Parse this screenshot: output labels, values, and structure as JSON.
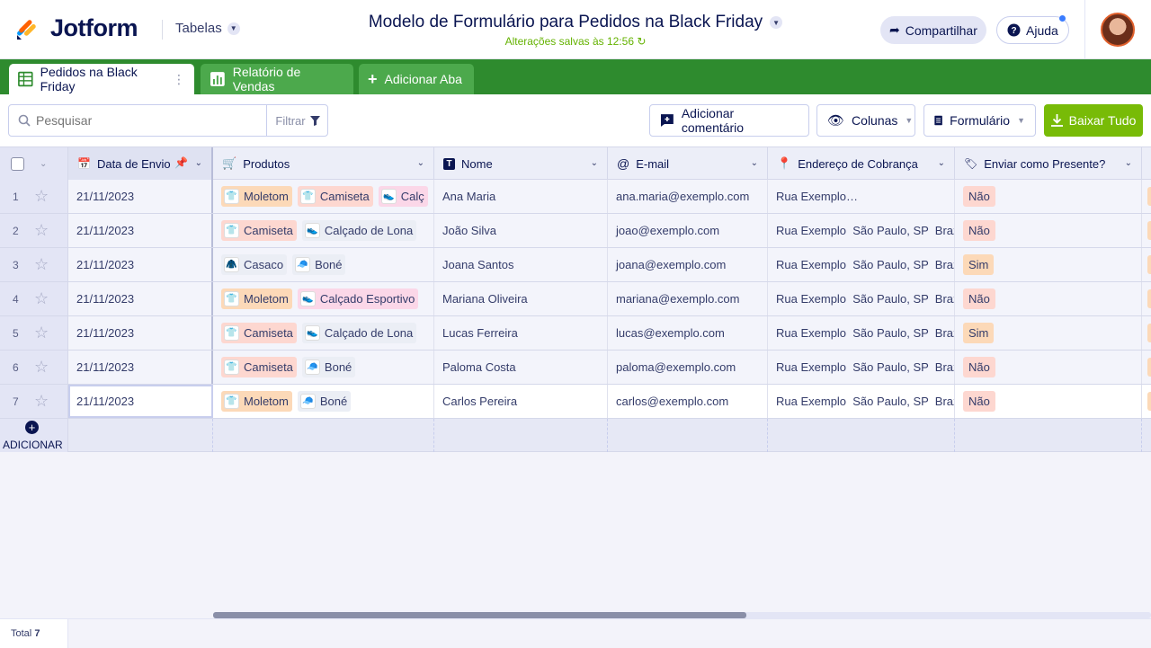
{
  "header": {
    "logo_text": "Jotform",
    "tables_label": "Tabelas",
    "form_title": "Modelo de Formulário para Pedidos na Black Friday",
    "saved_status": "Alterações salvas às 12:56",
    "share_label": "Compartilhar",
    "help_label": "Ajuda"
  },
  "tabs": [
    {
      "label": "Pedidos na Black Friday",
      "active": true
    },
    {
      "label": "Relatório de Vendas",
      "active": false
    },
    {
      "label": "Adicionar Aba",
      "active": false
    }
  ],
  "toolbar": {
    "search_placeholder": "Pesquisar",
    "filter_label": "Filtrar",
    "add_comment_label": "Adicionar comentário",
    "columns_label": "Colunas",
    "form_label": "Formulário",
    "download_label": "Baixar Tudo"
  },
  "columns": [
    {
      "label": "Data de Envio",
      "icon": "calendar-icon"
    },
    {
      "label": "Produtos",
      "icon": "cart-icon"
    },
    {
      "label": "Nome",
      "icon": "text-icon"
    },
    {
      "label": "E-mail",
      "icon": "at-icon"
    },
    {
      "label": "Endereço de Cobrança",
      "icon": "location-pin-icon"
    },
    {
      "label": "Enviar como Presente?",
      "icon": "tag-icon"
    }
  ],
  "rows": [
    {
      "num": "1",
      "date": "21/11/2023",
      "products": [
        "Moletom",
        "Camiseta",
        "Calç"
      ],
      "name": "Ana Maria",
      "email": "ana.maria@exemplo.com",
      "address": "Rua Exemplo…",
      "gift": "Não"
    },
    {
      "num": "2",
      "date": "21/11/2023",
      "products": [
        "Camiseta",
        "Calçado de Lona"
      ],
      "name": "João Silva",
      "email": "joao@exemplo.com",
      "address": "Rua Exemplo  São Paulo, SP  Brazil",
      "gift": "Não"
    },
    {
      "num": "3",
      "date": "21/11/2023",
      "products": [
        "Casaco",
        "Boné"
      ],
      "name": "Joana Santos",
      "email": "joana@exemplo.com",
      "address": "Rua Exemplo  São Paulo, SP  Brazil",
      "gift": "Sim"
    },
    {
      "num": "4",
      "date": "21/11/2023",
      "products": [
        "Moletom",
        "Calçado Esportivo"
      ],
      "name": "Mariana Oliveira",
      "email": "mariana@exemplo.com",
      "address": "Rua Exemplo  São Paulo, SP  Brazil",
      "gift": "Não"
    },
    {
      "num": "5",
      "date": "21/11/2023",
      "products": [
        "Camiseta",
        "Calçado de Lona"
      ],
      "name": "Lucas Ferreira",
      "email": "lucas@exemplo.com",
      "address": "Rua Exemplo  São Paulo, SP  Brazil",
      "gift": "Sim"
    },
    {
      "num": "6",
      "date": "21/11/2023",
      "products": [
        "Camiseta",
        "Boné"
      ],
      "name": "Paloma Costa",
      "email": "paloma@exemplo.com",
      "address": "Rua Exemplo  São Paulo, SP  Brazil",
      "gift": "Não"
    },
    {
      "num": "7",
      "date": "21/11/2023",
      "products": [
        "Moletom",
        "Boné"
      ],
      "name": "Carlos Pereira",
      "email": "carlos@exemplo.com",
      "address": "Rua Exemplo  São Paulo, SP  Brazil",
      "gift": "Não"
    }
  ],
  "add_row_label": "ADICIONAR",
  "footer": {
    "total_label": "Total",
    "total_count": "7"
  },
  "colors": {
    "brand_green": "#2e8b2e",
    "download_green": "#78bb07",
    "navy": "#0a1551"
  }
}
